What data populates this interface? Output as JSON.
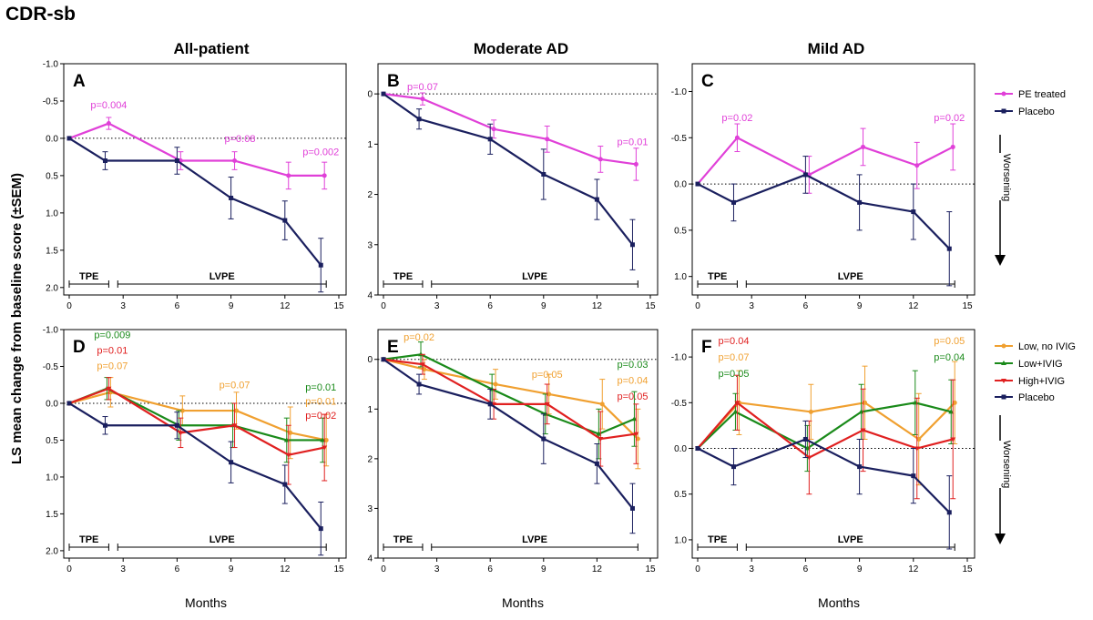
{
  "figure": {
    "title": "CDR-sb",
    "column_titles": [
      "All-patient",
      "Moderate AD",
      "Mild AD"
    ],
    "ylabel": "LS mean change from baseline score (±SEM)",
    "xlabel": "Months",
    "worsening_label": "Worsening",
    "phase_labels": [
      "TPE",
      "LVPE"
    ]
  },
  "legend_top": [
    {
      "label": "PE treated",
      "color": "#e040d8"
    },
    {
      "label": "Placebo",
      "color": "#1a1f5e"
    }
  ],
  "legend_bottom": [
    {
      "label": "Low, no IVIG",
      "color": "#f0a030"
    },
    {
      "label": "Low+IVIG",
      "color": "#1a8a1a"
    },
    {
      "label": "High+IVIG",
      "color": "#e02020"
    },
    {
      "label": "Placebo",
      "color": "#1a1f5e"
    }
  ],
  "colors": {
    "pe": "#e040d8",
    "placebo": "#1a1f5e",
    "low_no_ivig": "#f0a030",
    "low_ivig": "#1a8a1a",
    "high_ivig": "#e02020"
  },
  "chart_data": [
    {
      "panel": "A",
      "type": "line",
      "column": "All-patient",
      "x_ticks": [
        0,
        3,
        6,
        9,
        12,
        15
      ],
      "xlim": [
        0,
        15
      ],
      "y_ticks": [
        -1.0,
        -0.5,
        0.0,
        0.5,
        1.0,
        1.5,
        2.0
      ],
      "y_tick_labels": [
        "-1.0",
        "-0.5",
        "0.0",
        "0.5",
        "1.0",
        "1.5",
        "2.0"
      ],
      "ylim": [
        -1.0,
        2.1
      ],
      "y_inverted": true,
      "series": [
        {
          "name": "PE treated",
          "color": "#e040d8",
          "x": [
            0,
            2.2,
            6.2,
            9.2,
            12.2,
            14.2
          ],
          "y": [
            0,
            -0.2,
            0.3,
            0.3,
            0.5,
            0.5
          ],
          "err": [
            0,
            0.08,
            0.12,
            0.12,
            0.18,
            0.18
          ]
        },
        {
          "name": "Placebo",
          "color": "#1a1f5e",
          "x": [
            0,
            2.0,
            6.0,
            9.0,
            12.0,
            14.0
          ],
          "y": [
            0,
            0.3,
            0.3,
            0.8,
            1.1,
            1.7
          ],
          "err": [
            0,
            0.12,
            0.18,
            0.28,
            0.26,
            0.36
          ]
        }
      ],
      "p_values": [
        {
          "text": "p=0.004",
          "color": "#e040d8",
          "x": 2.2,
          "y": -0.45
        },
        {
          "text": "p=0.08",
          "color": "#e040d8",
          "x": 9.5,
          "y": 0.0
        },
        {
          "text": "p=0.002",
          "color": "#e040d8",
          "x": 14.0,
          "y": 0.18
        }
      ]
    },
    {
      "panel": "B",
      "type": "line",
      "column": "Moderate AD",
      "x_ticks": [
        0,
        3,
        6,
        9,
        12,
        15
      ],
      "xlim": [
        0,
        15
      ],
      "y_ticks": [
        0,
        1,
        2,
        3,
        4
      ],
      "y_tick_labels": [
        "0",
        "1",
        "2",
        "3",
        "4"
      ],
      "ylim": [
        -0.6,
        4.0
      ],
      "y_inverted": true,
      "series": [
        {
          "name": "PE treated",
          "color": "#e040d8",
          "x": [
            0,
            2.2,
            6.2,
            9.2,
            12.2,
            14.2
          ],
          "y": [
            0,
            0.1,
            0.7,
            0.9,
            1.3,
            1.4
          ],
          "err": [
            0,
            0.12,
            0.18,
            0.26,
            0.26,
            0.32
          ]
        },
        {
          "name": "Placebo",
          "color": "#1a1f5e",
          "x": [
            0,
            2.0,
            6.0,
            9.0,
            12.0,
            14.0
          ],
          "y": [
            0,
            0.5,
            0.9,
            1.6,
            2.1,
            3.0
          ],
          "err": [
            0,
            0.2,
            0.3,
            0.5,
            0.4,
            0.5
          ]
        }
      ],
      "p_values": [
        {
          "text": "p=0.07",
          "color": "#e040d8",
          "x": 2.2,
          "y": -0.15
        },
        {
          "text": "p=0.01",
          "color": "#e040d8",
          "x": 14.0,
          "y": 0.95
        }
      ]
    },
    {
      "panel": "C",
      "type": "line",
      "column": "Mild AD",
      "x_ticks": [
        0,
        3,
        6,
        9,
        12,
        15
      ],
      "xlim": [
        0,
        15
      ],
      "y_ticks": [
        -1.0,
        -0.5,
        0.0,
        0.5,
        1.0
      ],
      "y_tick_labels": [
        "-1.0",
        "-0.5",
        "0.0",
        "0.5",
        "1.0"
      ],
      "ylim": [
        -1.3,
        1.2
      ],
      "y_inverted": true,
      "series": [
        {
          "name": "PE treated",
          "color": "#e040d8",
          "x": [
            0,
            2.2,
            6.2,
            9.2,
            12.2,
            14.2
          ],
          "y": [
            0,
            -0.5,
            -0.1,
            -0.4,
            -0.2,
            -0.4
          ],
          "err": [
            0,
            0.15,
            0.2,
            0.2,
            0.25,
            0.25
          ]
        },
        {
          "name": "Placebo",
          "color": "#1a1f5e",
          "x": [
            0,
            2.0,
            6.0,
            9.0,
            12.0,
            14.0
          ],
          "y": [
            0,
            0.2,
            -0.1,
            0.2,
            0.3,
            0.7
          ],
          "err": [
            0,
            0.2,
            0.2,
            0.3,
            0.3,
            0.4
          ]
        }
      ],
      "p_values": [
        {
          "text": "p=0.02",
          "color": "#e040d8",
          "x": 2.2,
          "y": -0.72
        },
        {
          "text": "p=0.02",
          "color": "#e040d8",
          "x": 14.0,
          "y": -0.72
        }
      ]
    },
    {
      "panel": "D",
      "type": "line",
      "column": "All-patient",
      "x_ticks": [
        0,
        3,
        6,
        9,
        12,
        15
      ],
      "xlim": [
        0,
        15
      ],
      "y_ticks": [
        -1.0,
        -0.5,
        0.0,
        0.5,
        1.0,
        1.5,
        2.0
      ],
      "y_tick_labels": [
        "-1.0",
        "-0.5",
        "0.0",
        "0.5",
        "1.0",
        "1.5",
        "2.0"
      ],
      "ylim": [
        -1.0,
        2.1
      ],
      "y_inverted": true,
      "series": [
        {
          "name": "Low, no IVIG",
          "color": "#f0a030",
          "x": [
            0,
            2.3,
            6.3,
            9.3,
            12.3,
            14.3
          ],
          "y": [
            0,
            -0.15,
            0.1,
            0.1,
            0.4,
            0.5
          ],
          "err": [
            0,
            0.2,
            0.2,
            0.25,
            0.35,
            0.35
          ]
        },
        {
          "name": "Low+IVIG",
          "color": "#1a8a1a",
          "x": [
            0,
            2.1,
            6.1,
            9.1,
            12.1,
            14.1
          ],
          "y": [
            0,
            -0.2,
            0.3,
            0.3,
            0.5,
            0.5
          ],
          "err": [
            0,
            0.15,
            0.2,
            0.3,
            0.3,
            0.3
          ]
        },
        {
          "name": "High+IVIG",
          "color": "#e02020",
          "x": [
            0,
            2.2,
            6.2,
            9.2,
            12.2,
            14.2
          ],
          "y": [
            0,
            -0.2,
            0.4,
            0.3,
            0.7,
            0.6
          ],
          "err": [
            0,
            0.15,
            0.2,
            0.3,
            0.4,
            0.45
          ]
        },
        {
          "name": "Placebo",
          "color": "#1a1f5e",
          "x": [
            0,
            2.0,
            6.0,
            9.0,
            12.0,
            14.0
          ],
          "y": [
            0,
            0.3,
            0.3,
            0.8,
            1.1,
            1.7
          ],
          "err": [
            0,
            0.12,
            0.18,
            0.28,
            0.26,
            0.36
          ]
        }
      ],
      "p_values": [
        {
          "text": "p=0.009",
          "color": "#1a8a1a",
          "x": 2.4,
          "y": -0.93
        },
        {
          "text": "p=0.01",
          "color": "#e02020",
          "x": 2.4,
          "y": -0.72
        },
        {
          "text": "p=0.07",
          "color": "#f0a030",
          "x": 2.4,
          "y": -0.51
        },
        {
          "text": "p=0.07",
          "color": "#f0a030",
          "x": 9.2,
          "y": -0.25
        },
        {
          "text": "p=0.01",
          "color": "#1a8a1a",
          "x": 14.0,
          "y": -0.22
        },
        {
          "text": "p=0.01",
          "color": "#f0a030",
          "x": 14.0,
          "y": -0.03
        },
        {
          "text": "p=0.02",
          "color": "#e02020",
          "x": 14.0,
          "y": 0.16
        }
      ]
    },
    {
      "panel": "E",
      "type": "line",
      "column": "Moderate AD",
      "x_ticks": [
        0,
        3,
        6,
        9,
        12,
        15
      ],
      "xlim": [
        0,
        15
      ],
      "y_ticks": [
        0,
        1,
        2,
        3,
        4
      ],
      "y_tick_labels": [
        "0",
        "1",
        "2",
        "3",
        "4"
      ],
      "ylim": [
        -0.6,
        4.0
      ],
      "y_inverted": true,
      "series": [
        {
          "name": "Low, no IVIG",
          "color": "#f0a030",
          "x": [
            0,
            2.3,
            6.3,
            9.3,
            12.3,
            14.3
          ],
          "y": [
            0,
            0.2,
            0.5,
            0.7,
            0.9,
            1.6
          ],
          "err": [
            0,
            0.2,
            0.3,
            0.4,
            0.5,
            0.6
          ]
        },
        {
          "name": "Low+IVIG",
          "color": "#1a8a1a",
          "x": [
            0,
            2.1,
            6.1,
            9.1,
            12.1,
            14.1
          ],
          "y": [
            0,
            -0.1,
            0.6,
            1.1,
            1.5,
            1.2
          ],
          "err": [
            0,
            0.25,
            0.3,
            0.4,
            0.5,
            0.55
          ]
        },
        {
          "name": "High+IVIG",
          "color": "#e02020",
          "x": [
            0,
            2.2,
            6.2,
            9.2,
            12.2,
            14.2
          ],
          "y": [
            0,
            0.1,
            0.9,
            0.9,
            1.6,
            1.5
          ],
          "err": [
            0,
            0.2,
            0.3,
            0.4,
            0.55,
            0.6
          ]
        },
        {
          "name": "Placebo",
          "color": "#1a1f5e",
          "x": [
            0,
            2.0,
            6.0,
            9.0,
            12.0,
            14.0
          ],
          "y": [
            0,
            0.5,
            0.9,
            1.6,
            2.1,
            3.0
          ],
          "err": [
            0,
            0.2,
            0.3,
            0.5,
            0.4,
            0.5
          ]
        }
      ],
      "p_values": [
        {
          "text": "p=0.02",
          "color": "#f0a030",
          "x": 2.0,
          "y": -0.45
        },
        {
          "text": "p=0.05",
          "color": "#f0a030",
          "x": 9.2,
          "y": 0.3
        },
        {
          "text": "p=0.03",
          "color": "#1a8a1a",
          "x": 14.0,
          "y": 0.1
        },
        {
          "text": "p=0.04",
          "color": "#f0a030",
          "x": 14.0,
          "y": 0.42
        },
        {
          "text": "p=0.05",
          "color": "#e02020",
          "x": 14.0,
          "y": 0.74
        }
      ]
    },
    {
      "panel": "F",
      "type": "line",
      "column": "Mild AD",
      "x_ticks": [
        0,
        3,
        6,
        9,
        12,
        15
      ],
      "xlim": [
        0,
        15
      ],
      "y_ticks": [
        -1.0,
        -0.5,
        0.0,
        0.5,
        1.0
      ],
      "y_tick_labels": [
        "-1.0",
        "-0.5",
        "0.0",
        "0.5",
        "1.0"
      ],
      "ylim": [
        -1.3,
        1.2
      ],
      "y_inverted": true,
      "series": [
        {
          "name": "Low, no IVIG",
          "color": "#f0a030",
          "x": [
            0,
            2.3,
            6.3,
            9.3,
            12.3,
            14.3
          ],
          "y": [
            0,
            -0.5,
            -0.4,
            -0.5,
            -0.1,
            -0.5
          ],
          "err": [
            0,
            0.35,
            0.3,
            0.4,
            0.5,
            0.45
          ]
        },
        {
          "name": "Low+IVIG",
          "color": "#1a8a1a",
          "x": [
            0,
            2.1,
            6.1,
            9.1,
            12.1,
            14.1
          ],
          "y": [
            0,
            -0.4,
            0.0,
            -0.4,
            -0.5,
            -0.4
          ],
          "err": [
            0,
            0.2,
            0.25,
            0.3,
            0.35,
            0.35
          ]
        },
        {
          "name": "High+IVIG",
          "color": "#e02020",
          "x": [
            0,
            2.2,
            6.2,
            9.2,
            12.2,
            14.2
          ],
          "y": [
            0,
            -0.5,
            0.1,
            -0.2,
            0.0,
            -0.1
          ],
          "err": [
            0,
            0.3,
            0.4,
            0.45,
            0.55,
            0.65
          ]
        },
        {
          "name": "Placebo",
          "color": "#1a1f5e",
          "x": [
            0,
            2.0,
            6.0,
            9.0,
            12.0,
            14.0
          ],
          "y": [
            0,
            0.2,
            -0.1,
            0.2,
            0.3,
            0.7
          ],
          "err": [
            0,
            0.2,
            0.2,
            0.3,
            0.3,
            0.4
          ]
        }
      ],
      "p_values": [
        {
          "text": "p=0.04",
          "color": "#e02020",
          "x": 2.0,
          "y": -1.18
        },
        {
          "text": "p=0.07",
          "color": "#f0a030",
          "x": 2.0,
          "y": -1.0
        },
        {
          "text": "p=0.05",
          "color": "#1a8a1a",
          "x": 2.0,
          "y": -0.82
        },
        {
          "text": "p=0.05",
          "color": "#f0a030",
          "x": 14.0,
          "y": -1.18
        },
        {
          "text": "p=0.04",
          "color": "#1a8a1a",
          "x": 14.0,
          "y": -1.0
        }
      ]
    }
  ]
}
